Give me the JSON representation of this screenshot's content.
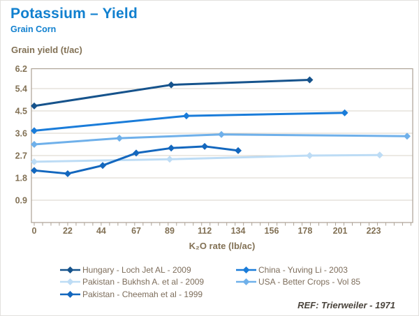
{
  "header": {
    "title": "Potassium – Yield",
    "subtitle": "Grain Corn"
  },
  "chart_data": {
    "type": "line",
    "title": "Potassium – Yield",
    "subtitle": "Grain Corn",
    "xlabel": "K₂O rate (lb/ac)",
    "ylabel": "Grain yield (t/ac)",
    "x_ticks": [
      0,
      22,
      44,
      67,
      89,
      112,
      134,
      156,
      178,
      201,
      223
    ],
    "y_ticks": [
      0.9,
      1.8,
      2.7,
      3.6,
      4.5,
      5.4,
      6.2
    ],
    "xlim": [
      0,
      249
    ],
    "ylim": [
      0,
      6.2
    ],
    "grid": "horizontal",
    "legend_position": "bottom",
    "marker": "diamond",
    "series": [
      {
        "name": "Hungary - Loch Jet AL - 2009",
        "color": "#16538c",
        "x": [
          0,
          90,
          181
        ],
        "y": [
          4.7,
          5.55,
          5.75
        ]
      },
      {
        "name": "Pakistan - Bukhsh A. et al - 2009",
        "color": "#bddcf5",
        "x": [
          0,
          89,
          181,
          227
        ],
        "y": [
          2.45,
          2.55,
          2.7,
          2.72
        ]
      },
      {
        "name": "Pakistan - Cheemah et al - 1999",
        "color": "#1367be",
        "x": [
          0,
          22,
          45,
          67,
          90,
          112,
          134
        ],
        "y": [
          2.1,
          1.97,
          2.3,
          2.8,
          3.0,
          3.07,
          2.9
        ]
      },
      {
        "name": "China - Yuving Li - 2003",
        "color": "#1a7cd9",
        "x": [
          0,
          100,
          204
        ],
        "y": [
          3.7,
          4.3,
          4.42
        ]
      },
      {
        "name": "USA - Better Crops - Vol 85",
        "color": "#6fb0ea",
        "x": [
          0,
          56,
          123,
          245
        ],
        "y": [
          3.15,
          3.4,
          3.55,
          3.48
        ]
      }
    ]
  },
  "legend_columns": [
    [
      0,
      1,
      2
    ],
    [
      3,
      4
    ]
  ],
  "ref_note": "REF: Trierweiler - 1971",
  "colors": {
    "title_blue": "#1180cf",
    "axis_text": "#827155",
    "legend_text": "#7d6d5b",
    "grid_line": "#d9d3c9",
    "axis_line": "#aca194",
    "ref_text": "#4a443c",
    "background": "#ffffff"
  }
}
